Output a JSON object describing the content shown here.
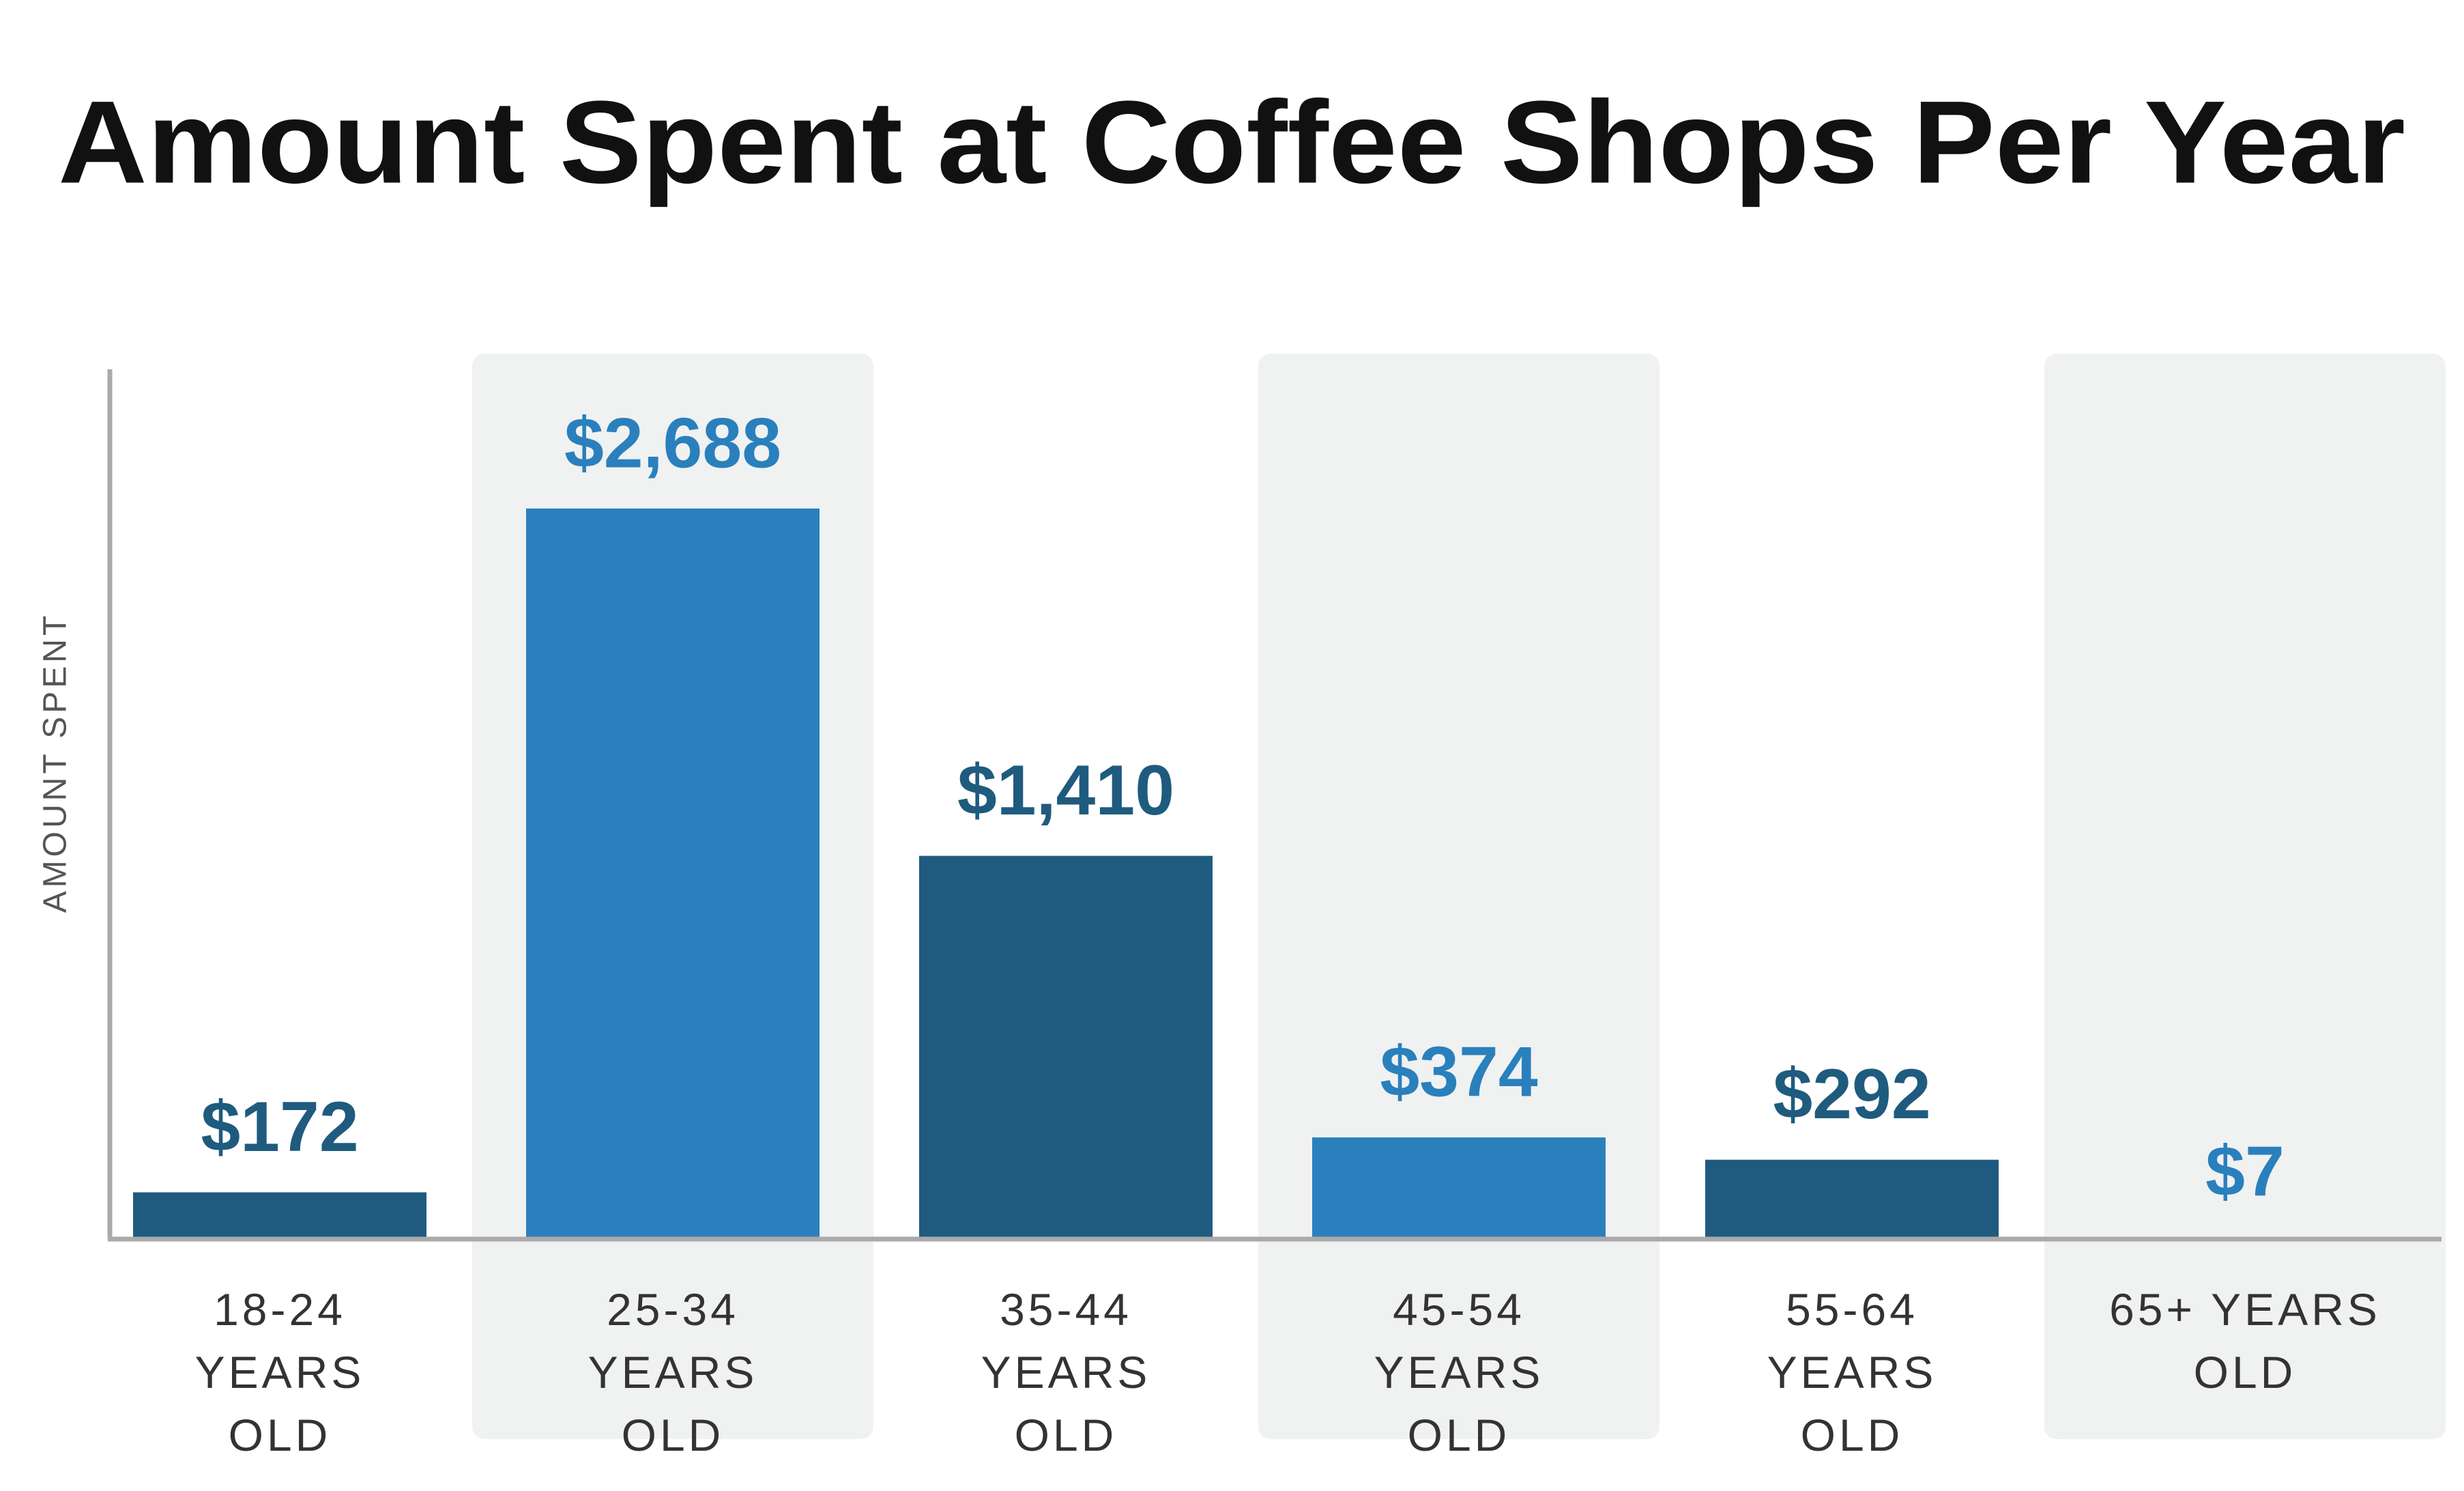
{
  "chart_data": {
    "type": "bar",
    "title": "Amount Spent at Coffee Shops Per Year",
    "y_label": "AMOUNT SPENT",
    "categories": [
      "18-24 YEARS OLD",
      "25-34 YEARS OLD",
      "35-44 YEARS OLD",
      "45-54 YEARS OLD",
      "55-64 YEARS OLD",
      "65+ YEARS OLD"
    ],
    "values": [
      172,
      2688,
      1410,
      374,
      292,
      7
    ],
    "value_labels": [
      "$172",
      "$2,688",
      "$1,410",
      "$374",
      "$292",
      "$7"
    ],
    "colors": [
      "#1f5b7e",
      "#2a80bc",
      "#1f5b7e",
      "#2a80bc",
      "#1f5b7e",
      "#2a80bc"
    ],
    "ylim": [
      0,
      3200
    ]
  }
}
